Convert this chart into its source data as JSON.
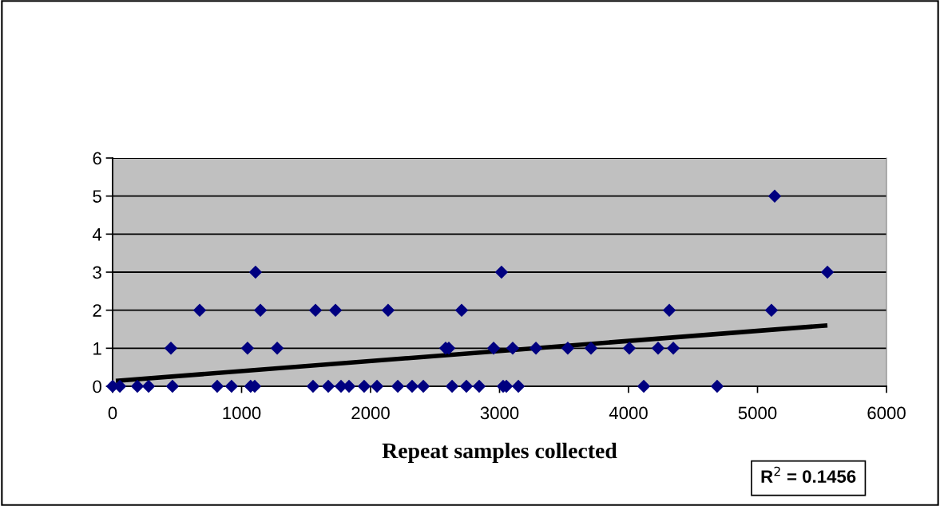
{
  "chart_data": {
    "type": "scatter",
    "xlabel": "Repeat samples collected",
    "series": [
      {
        "color": "#000080",
        "marker": "diamond",
        "x": [
          0,
          56,
          192,
          279,
          464,
          811,
          922,
          1070,
          1102,
          1554,
          1672,
          1771,
          1833,
          1950,
          2050,
          2211,
          2322,
          2409,
          2632,
          2743,
          2842,
          3028,
          3053,
          3146,
          4118,
          4687,
          452,
          1046,
          1276,
          2582,
          2607,
          2954,
          3102,
          3282,
          3529,
          3709,
          4006,
          4229,
          4347,
          675,
          1146,
          1573,
          1728,
          2136,
          2706,
          4316,
          5108,
          1108,
          3015,
          5542,
          5133
        ],
        "values": [
          0,
          0,
          0,
          0,
          0,
          0,
          0,
          0,
          0,
          0,
          0,
          0,
          0,
          0,
          0,
          0,
          0,
          0,
          0,
          0,
          0,
          0,
          0,
          0,
          0,
          0,
          1,
          1,
          1,
          1,
          1,
          1,
          1,
          1,
          1,
          1,
          1,
          1,
          1,
          2,
          2,
          2,
          2,
          2,
          2,
          2,
          2,
          3,
          3,
          3,
          5
        ]
      },
      {
        "type": "line",
        "color": "#000000",
        "marker": "none",
        "line_style": "solid",
        "x": [
          25,
          5542
        ],
        "values": [
          0.14,
          1.6
        ]
      }
    ],
    "xlim": [
      0,
      6000
    ],
    "xticks": [
      0,
      1000,
      2000,
      3000,
      4000,
      5000,
      6000
    ],
    "ylim": [
      0,
      6
    ],
    "yticks": [
      0,
      1,
      2,
      3,
      4,
      5,
      6
    ],
    "grid": "y",
    "legend": false,
    "annotations": [
      "R$^{2}$ = 0.1456"
    ]
  }
}
